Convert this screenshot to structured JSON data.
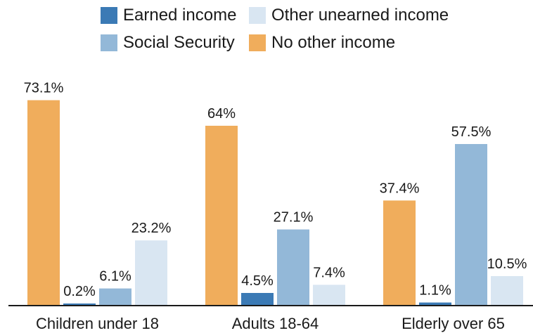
{
  "chart_data": {
    "type": "bar",
    "categories": [
      "Children under 18",
      "Adults 18-64",
      "Elderly over 65"
    ],
    "series": [
      {
        "name": "No other income",
        "color": "#f0ad5c",
        "values": [
          73.1,
          64,
          37.4
        ],
        "labels": [
          "73.1%",
          "64%",
          "37.4%"
        ]
      },
      {
        "name": "Earned income",
        "color": "#3b7ab5",
        "values": [
          0.2,
          4.5,
          1.1
        ],
        "labels": [
          "0.2%",
          "4.5%",
          "1.1%"
        ]
      },
      {
        "name": "Social Security",
        "color": "#93b8d8",
        "values": [
          6.1,
          27.1,
          57.5
        ],
        "labels": [
          "6.1%",
          "27.1%",
          "57.5%"
        ]
      },
      {
        "name": "Other unearned income",
        "color": "#d9e6f2",
        "values": [
          23.2,
          7.4,
          10.5
        ],
        "labels": [
          "23.2%",
          "7.4%",
          "10.5%"
        ]
      }
    ],
    "legend": {
      "placement": "top",
      "entries": [
        {
          "label": "Earned income",
          "color": "#3b7ab5"
        },
        {
          "label": "Other unearned income",
          "color": "#d9e6f2"
        },
        {
          "label": "Social Security",
          "color": "#93b8d8"
        },
        {
          "label": "No other income",
          "color": "#f0ad5c"
        }
      ]
    },
    "ylim": [
      0,
      100
    ],
    "grid": false
  }
}
